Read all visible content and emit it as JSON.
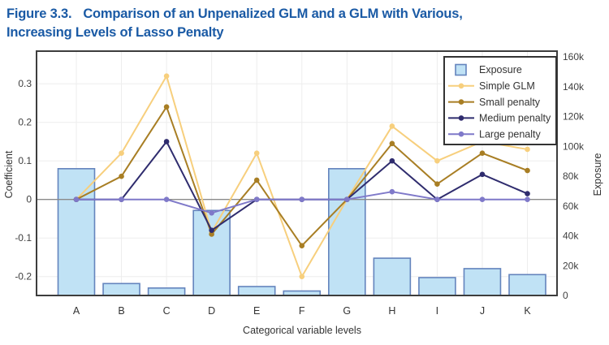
{
  "figure": {
    "label": "Figure 3.3.",
    "title_rest": "Comparison of an Unpenalized GLM and a GLM with Various,",
    "title_line2": "Increasing Levels of Lasso Penalty"
  },
  "colors": {
    "title": "#1a5aa5",
    "bar_fill": "#c0e2f5",
    "bar_stroke": "#6484bd",
    "zero_line": "#8a8a8a",
    "plot_border": "#3d3d3d",
    "grid": "#ededed",
    "tick_text": "#404040",
    "label_text": "#333333",
    "legend_border": "#333333"
  },
  "chart_data": {
    "type": "combo-bar-line",
    "categories": [
      "A",
      "B",
      "C",
      "D",
      "E",
      "F",
      "G",
      "H",
      "I",
      "J",
      "K"
    ],
    "xlabel": "Categorical variable levels",
    "left_axis": {
      "label": "Coefficient",
      "tick_labels": [
        "0.3",
        "0.2",
        "0.1",
        "0",
        "-0.1",
        "-0.2"
      ],
      "tick_values": [
        0.3,
        0.2,
        0.1,
        0,
        -0.1,
        -0.2
      ],
      "range": [
        -0.25,
        0.385
      ],
      "grid": true
    },
    "right_axis": {
      "label": "Exposure",
      "tick_labels": [
        "160k",
        "140k",
        "120k",
        "100k",
        "80k",
        "60k",
        "40k",
        "20k",
        "0"
      ],
      "tick_values": [
        160000,
        140000,
        120000,
        100000,
        80000,
        60000,
        40000,
        20000,
        0
      ],
      "range": [
        0,
        160000
      ]
    },
    "bar_series": {
      "name": "Exposure",
      "axis": "right",
      "values": [
        85000,
        8000,
        5000,
        57000,
        6000,
        3000,
        85000,
        25000,
        12000,
        18000,
        14000
      ]
    },
    "line_series": [
      {
        "name": "Simple GLM",
        "color": "#f7cf7d",
        "values": [
          0,
          0.12,
          0.32,
          -0.085,
          0.12,
          -0.2,
          0,
          0.19,
          0.1,
          0.15,
          0.13
        ]
      },
      {
        "name": "Small penalty",
        "color": "#a87e24",
        "values": [
          0,
          0.06,
          0.24,
          -0.09,
          0.05,
          -0.12,
          0,
          0.145,
          0.04,
          0.12,
          0.075
        ]
      },
      {
        "name": "Medium penalty",
        "color": "#2f2c6e",
        "values": [
          0,
          0,
          0.15,
          -0.08,
          0,
          0,
          0,
          0.1,
          0,
          0.065,
          0.015
        ]
      },
      {
        "name": "Large penalty",
        "color": "#7f79c9",
        "values": [
          0,
          0,
          0,
          -0.035,
          0,
          0,
          0,
          0.02,
          0,
          0,
          0
        ]
      }
    ],
    "legend": {
      "position": "top-right",
      "items": [
        "Exposure",
        "Simple GLM",
        "Small penalty",
        "Medium penalty",
        "Large penalty"
      ]
    }
  }
}
